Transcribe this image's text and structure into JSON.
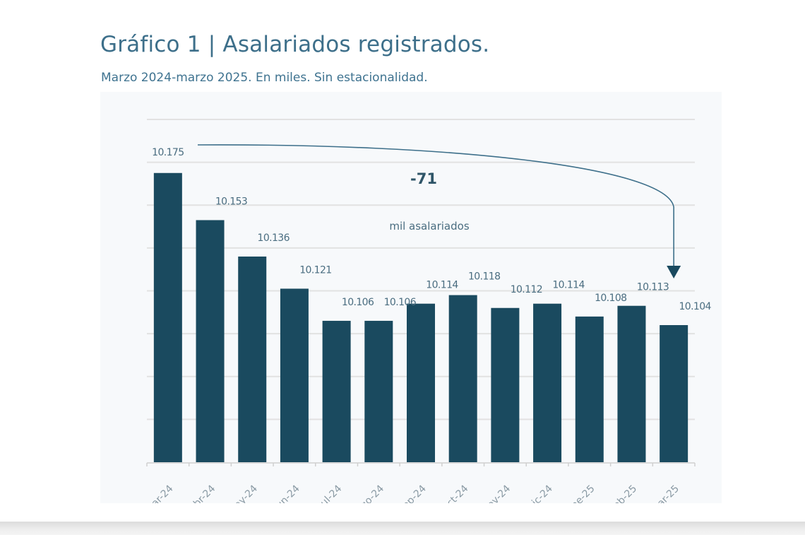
{
  "header": {
    "title": "Gráfico 1 | Asalariados registrados.",
    "subtitle": "Marzo 2024-marzo 2025. En miles. Sin estacionalidad."
  },
  "chart_data": {
    "type": "bar",
    "title": "Gráfico 1 | Asalariados registrados.",
    "subtitle": "Marzo 2024-marzo 2025. En miles. Sin estacionalidad.",
    "xlabel": "",
    "ylabel": "",
    "categories": [
      "ar-24",
      "br-24",
      "ay-24",
      "un-24",
      "ul-24",
      "go-24",
      "ep-24",
      "ct-24",
      "ov-24",
      "ic-24",
      "ne-25",
      "eb-25",
      "ar-25"
    ],
    "values": [
      10175,
      10153,
      10136,
      10121,
      10106,
      10106,
      10114,
      10118,
      10112,
      10114,
      10108,
      10113,
      10104
    ],
    "data_labels": [
      "10.175",
      "10.153",
      "10.136",
      "10.121",
      "10.106",
      "10.106",
      "10.114",
      "10.118",
      "10.112",
      "10.114",
      "10.108",
      "10.113",
      "10.104"
    ],
    "ylim": [
      10040,
      10200
    ],
    "ygrid_step": 20,
    "grid": true,
    "y_tick_labels_shown": false,
    "legend": "none",
    "bar_color": "#1a4a5f",
    "annotation": {
      "value_text": "-71",
      "unit_text": "mil asalariados",
      "from_category": "ar-24",
      "to_category": "ar-25",
      "color": "#3d6f8a"
    }
  }
}
